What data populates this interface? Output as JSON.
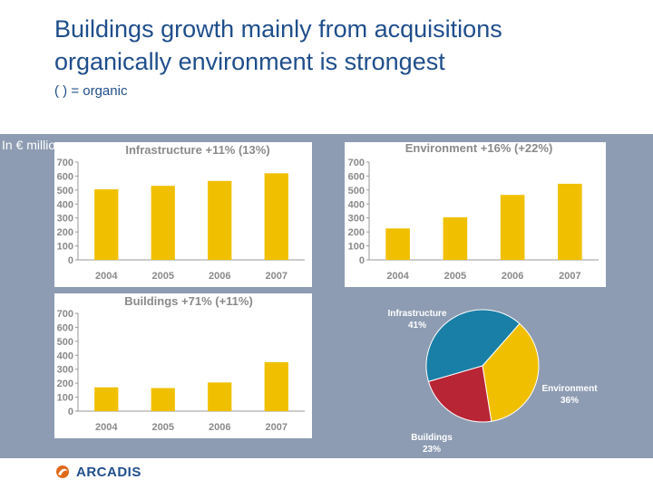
{
  "slide": {
    "title_line1": "Buildings growth mainly from acquisitions",
    "title_line2": "organically environment is strongest",
    "subtitle": "(     ) = organic",
    "unit_label": "In € million",
    "brand": "ARCADIS"
  },
  "colors": {
    "bar": "#f0c000",
    "panel": "#8d9cb2",
    "pie_infra": "#1a7fa6",
    "pie_env": "#f0c000",
    "pie_build": "#b82535"
  },
  "chart_data": [
    {
      "type": "bar",
      "title": "Infrastructure +11% (13%)",
      "categories": [
        "2004",
        "2005",
        "2006",
        "2007"
      ],
      "values": [
        505,
        530,
        565,
        620
      ],
      "ylim": [
        0,
        700
      ],
      "yticks": [
        0,
        100,
        200,
        300,
        400,
        500,
        600,
        700
      ],
      "grid": false
    },
    {
      "type": "bar",
      "title": "Environment +16% (+22%)",
      "categories": [
        "2004",
        "2005",
        "2006",
        "2007"
      ],
      "values": [
        225,
        305,
        465,
        545
      ],
      "ylim": [
        0,
        700
      ],
      "yticks": [
        0,
        100,
        200,
        300,
        400,
        500,
        600,
        700
      ],
      "grid": false
    },
    {
      "type": "bar",
      "title": "Buildings +71% (+11%)",
      "categories": [
        "2004",
        "2005",
        "2006",
        "2007"
      ],
      "values": [
        170,
        165,
        205,
        350
      ],
      "ylim": [
        0,
        700
      ],
      "yticks": [
        0,
        100,
        200,
        300,
        400,
        500,
        600,
        700
      ],
      "grid": false
    },
    {
      "type": "pie",
      "slices": [
        {
          "label": "Infrastructure",
          "value": 41,
          "value_label": "41%"
        },
        {
          "label": "Environment",
          "value": 36,
          "value_label": "36%"
        },
        {
          "label": "Buildings",
          "value": 23,
          "value_label": "23%"
        }
      ]
    }
  ]
}
